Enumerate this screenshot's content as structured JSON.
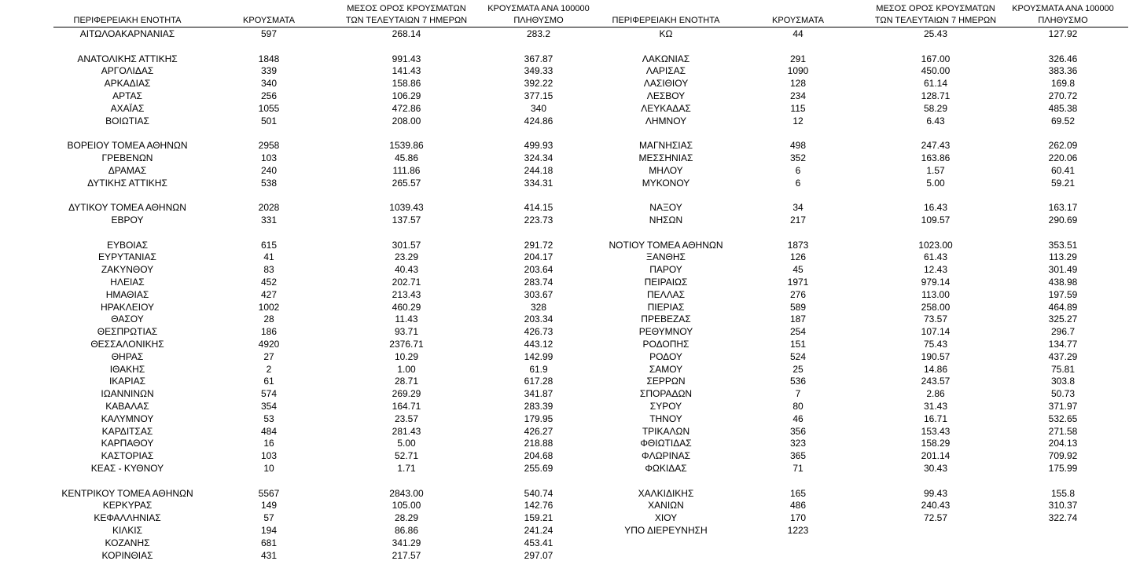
{
  "tables": [
    {
      "header": [
        [
          "ΠΕΡΙΦΕΡΕΙΑΚΗ ΕΝΟΤΗΤΑ"
        ],
        [
          "ΚΡΟΥΣΜΑΤΑ"
        ],
        [
          "ΜΕΣΟΣ ΟΡΟΣ ΚΡΟΥΣΜΑΤΩΝ",
          "ΤΩΝ ΤΕΛΕΥΤΑΙΩΝ 7 ΗΜΕΡΩΝ"
        ],
        [
          "ΚΡΟΥΣΜΑΤΑ ΑΝΑ 100000",
          "ΠΛΗΘΥΣΜΟ"
        ]
      ],
      "rows": [
        [
          "ΑΙΤΩΛΟΑΚΑΡΝΑΝΙΑΣ",
          "597",
          "268.14",
          "283.2"
        ],
        null,
        [
          "ΑΝΑΤΟΛΙΚΗΣ ΑΤΤΙΚΗΣ",
          "1848",
          "991.43",
          "367.87"
        ],
        [
          "ΑΡΓΟΛΙΔΑΣ",
          "339",
          "141.43",
          "349.33"
        ],
        [
          "ΑΡΚΑΔΙΑΣ",
          "340",
          "158.86",
          "392.22"
        ],
        [
          "ΑΡΤΑΣ",
          "256",
          "106.29",
          "377.15"
        ],
        [
          "ΑΧΑΪΑΣ",
          "1055",
          "472.86",
          "340"
        ],
        [
          "ΒΟΙΩΤΙΑΣ",
          "501",
          "208.00",
          "424.86"
        ],
        null,
        [
          "ΒΟΡΕΙΟΥ ΤΟΜΕΑ ΑΘΗΝΩΝ",
          "2958",
          "1539.86",
          "499.93"
        ],
        [
          "ΓΡΕΒΕΝΩΝ",
          "103",
          "45.86",
          "324.34"
        ],
        [
          "ΔΡΑΜΑΣ",
          "240",
          "111.86",
          "244.18"
        ],
        [
          "ΔΥΤΙΚΗΣ ΑΤΤΙΚΗΣ",
          "538",
          "265.57",
          "334.31"
        ],
        null,
        [
          "ΔΥΤΙΚΟΥ ΤΟΜΕΑ ΑΘΗΝΩΝ",
          "2028",
          "1039.43",
          "414.15"
        ],
        [
          "ΕΒΡΟΥ",
          "331",
          "137.57",
          "223.73"
        ],
        null,
        [
          "ΕΥΒΟΙΑΣ",
          "615",
          "301.57",
          "291.72"
        ],
        [
          "ΕΥΡΥΤΑΝΙΑΣ",
          "41",
          "23.29",
          "204.17"
        ],
        [
          "ΖΑΚΥΝΘΟΥ",
          "83",
          "40.43",
          "203.64"
        ],
        [
          "ΗΛΕΙΑΣ",
          "452",
          "202.71",
          "283.74"
        ],
        [
          "ΗΜΑΘΙΑΣ",
          "427",
          "213.43",
          "303.67"
        ],
        [
          "ΗΡΑΚΛΕΙΟΥ",
          "1002",
          "460.29",
          "328"
        ],
        [
          "ΘΑΣΟΥ",
          "28",
          "11.43",
          "203.34"
        ],
        [
          "ΘΕΣΠΡΩΤΙΑΣ",
          "186",
          "93.71",
          "426.73"
        ],
        [
          "ΘΕΣΣΑΛΟΝΙΚΗΣ",
          "4920",
          "2376.71",
          "443.12"
        ],
        [
          "ΘΗΡΑΣ",
          "27",
          "10.29",
          "142.99"
        ],
        [
          "ΙΘΑΚΗΣ",
          "2",
          "1.00",
          "61.9"
        ],
        [
          "ΙΚΑΡΙΑΣ",
          "61",
          "28.71",
          "617.28"
        ],
        [
          "ΙΩΑΝΝΙΝΩΝ",
          "574",
          "269.29",
          "341.87"
        ],
        [
          "ΚΑΒΑΛΑΣ",
          "354",
          "164.71",
          "283.39"
        ],
        [
          "ΚΑΛΥΜΝΟΥ",
          "53",
          "23.57",
          "179.95"
        ],
        [
          "ΚΑΡΔΙΤΣΑΣ",
          "484",
          "281.43",
          "426.27"
        ],
        [
          "ΚΑΡΠΑΘΟΥ",
          "16",
          "5.00",
          "218.88"
        ],
        [
          "ΚΑΣΤΟΡΙΑΣ",
          "103",
          "52.71",
          "204.68"
        ],
        [
          "ΚΕΑΣ - ΚΥΘΝΟΥ",
          "10",
          "1.71",
          "255.69"
        ],
        null,
        [
          "ΚΕΝΤΡΙΚΟΥ ΤΟΜΕΑ ΑΘΗΝΩΝ",
          "5567",
          "2843.00",
          "540.74"
        ],
        [
          "ΚΕΡΚΥΡΑΣ",
          "149",
          "105.00",
          "142.76"
        ],
        [
          "ΚΕΦΑΛΛΗΝΙΑΣ",
          "57",
          "28.29",
          "159.21"
        ],
        [
          "ΚΙΛΚΙΣ",
          "194",
          "86.86",
          "241.24"
        ],
        [
          "ΚΟΖΑΝΗΣ",
          "681",
          "341.29",
          "453.41"
        ],
        [
          "ΚΟΡΙΝΘΙΑΣ",
          "431",
          "217.57",
          "297.07"
        ]
      ]
    },
    {
      "header": [
        [
          "ΠΕΡΙΦΕΡΕΙΑΚΗ ΕΝΟΤΗΤΑ"
        ],
        [
          "ΚΡΟΥΣΜΑΤΑ"
        ],
        [
          "ΜΕΣΟΣ ΟΡΟΣ ΚΡΟΥΣΜΑΤΩΝ",
          "ΤΩΝ ΤΕΛΕΥΤΑΙΩΝ 7 ΗΜΕΡΩΝ"
        ],
        [
          "ΚΡΟΥΣΜΑΤΑ ΑΝΑ 100000",
          "ΠΛΗΘΥΣΜΟ"
        ]
      ],
      "rows": [
        [
          "ΚΩ",
          "44",
          "25.43",
          "127.92"
        ],
        null,
        [
          "ΛΑΚΩΝΙΑΣ",
          "291",
          "167.00",
          "326.46"
        ],
        [
          "ΛΑΡΙΣΑΣ",
          "1090",
          "450.00",
          "383.36"
        ],
        [
          "ΛΑΣΙΘΙΟΥ",
          "128",
          "61.14",
          "169.8"
        ],
        [
          "ΛΕΣΒΟΥ",
          "234",
          "128.71",
          "270.72"
        ],
        [
          "ΛΕΥΚΑΔΑΣ",
          "115",
          "58.29",
          "485.38"
        ],
        [
          "ΛΗΜΝΟΥ",
          "12",
          "6.43",
          "69.52"
        ],
        null,
        [
          "ΜΑΓΝΗΣΙΑΣ",
          "498",
          "247.43",
          "262.09"
        ],
        [
          "ΜΕΣΣΗΝΙΑΣ",
          "352",
          "163.86",
          "220.06"
        ],
        [
          "ΜΗΛΟΥ",
          "6",
          "1.57",
          "60.41"
        ],
        [
          "ΜΥΚΟΝΟΥ",
          "6",
          "5.00",
          "59.21"
        ],
        null,
        [
          "ΝΑΞΟΥ",
          "34",
          "16.43",
          "163.17"
        ],
        [
          "ΝΗΣΩΝ",
          "217",
          "109.57",
          "290.69"
        ],
        null,
        [
          "ΝΟΤΙΟΥ ΤΟΜΕΑ ΑΘΗΝΩΝ",
          "1873",
          "1023.00",
          "353.51"
        ],
        [
          "ΞΑΝΘΗΣ",
          "126",
          "61.43",
          "113.29"
        ],
        [
          "ΠΑΡΟΥ",
          "45",
          "12.43",
          "301.49"
        ],
        [
          "ΠΕΙΡΑΙΩΣ",
          "1971",
          "979.14",
          "438.98"
        ],
        [
          "ΠΕΛΛΑΣ",
          "276",
          "113.00",
          "197.59"
        ],
        [
          "ΠΙΕΡΙΑΣ",
          "589",
          "258.00",
          "464.89"
        ],
        [
          "ΠΡΕΒΕΖΑΣ",
          "187",
          "73.57",
          "325.27"
        ],
        [
          "ΡΕΘΥΜΝΟΥ",
          "254",
          "107.14",
          "296.7"
        ],
        [
          "ΡΟΔΟΠΗΣ",
          "151",
          "75.43",
          "134.77"
        ],
        [
          "ΡΟΔΟΥ",
          "524",
          "190.57",
          "437.29"
        ],
        [
          "ΣΑΜΟΥ",
          "25",
          "14.86",
          "75.81"
        ],
        [
          "ΣΕΡΡΩΝ",
          "536",
          "243.57",
          "303.8"
        ],
        [
          "ΣΠΟΡΑΔΩΝ",
          "7",
          "2.86",
          "50.73"
        ],
        [
          "ΣΥΡΟΥ",
          "80",
          "31.43",
          "371.97"
        ],
        [
          "ΤΗΝΟΥ",
          "46",
          "16.71",
          "532.65"
        ],
        [
          "ΤΡΙΚΑΛΩΝ",
          "356",
          "153.43",
          "271.58"
        ],
        [
          "ΦΘΙΩΤΙΔΑΣ",
          "323",
          "158.29",
          "204.13"
        ],
        [
          "ΦΛΩΡΙΝΑΣ",
          "365",
          "201.14",
          "709.92"
        ],
        [
          "ΦΩΚΙΔΑΣ",
          "71",
          "30.43",
          "175.99"
        ],
        null,
        [
          "ΧΑΛΚΙΔΙΚΗΣ",
          "165",
          "99.43",
          "155.8"
        ],
        [
          "ΧΑΝΙΩΝ",
          "486",
          "240.43",
          "310.37"
        ],
        [
          "ΧΙΟΥ",
          "170",
          "72.57",
          "322.74"
        ],
        [
          "ΥΠΟ ΔΙΕΡΕΥΝΗΣΗ",
          "1223"
        ]
      ]
    }
  ]
}
